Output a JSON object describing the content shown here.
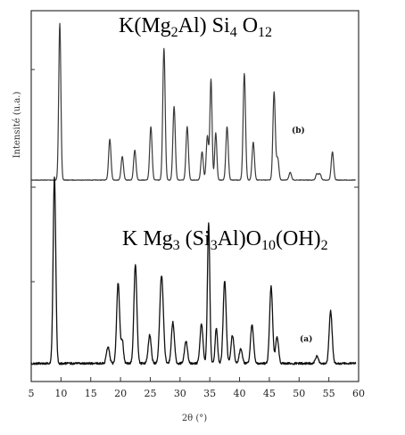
{
  "chart_data": {
    "type": "line",
    "title": "",
    "xlabel": "2θ (°)",
    "ylabel": "Intensité (u.a.)",
    "xlim": [
      5,
      60
    ],
    "xticks": [
      5,
      10,
      15,
      20,
      25,
      30,
      35,
      40,
      45,
      50,
      55,
      60
    ],
    "grid": false,
    "legend": "none",
    "series": [
      {
        "label": "(b)",
        "formula": [
          "K(Mg",
          "2",
          "Al) Si",
          "4",
          " O",
          "12"
        ],
        "color": "#3a3a3a",
        "baseline": 0,
        "ylim": [
          0,
          100
        ],
        "peaks": [
          [
            9.8,
            100,
            0.18
          ],
          [
            18.2,
            26,
            0.2
          ],
          [
            20.3,
            15,
            0.2
          ],
          [
            22.4,
            19,
            0.2
          ],
          [
            25.1,
            34,
            0.2
          ],
          [
            27.3,
            84,
            0.2
          ],
          [
            29.0,
            47,
            0.2
          ],
          [
            31.2,
            34,
            0.2
          ],
          [
            33.7,
            18,
            0.2
          ],
          [
            34.6,
            28,
            0.2
          ],
          [
            35.2,
            64,
            0.18
          ],
          [
            36.0,
            30,
            0.18
          ],
          [
            37.9,
            34,
            0.2
          ],
          [
            40.8,
            68,
            0.2
          ],
          [
            42.3,
            24,
            0.2
          ],
          [
            45.8,
            56,
            0.2
          ],
          [
            46.4,
            14,
            0.2
          ],
          [
            48.5,
            5,
            0.2
          ],
          [
            53.0,
            4,
            0.2
          ],
          [
            53.5,
            4,
            0.2
          ],
          [
            55.6,
            18,
            0.2
          ]
        ]
      },
      {
        "label": "(a)",
        "formula": [
          "K Mg",
          "3",
          " (Si",
          "3",
          "Al)O",
          "10",
          "(OH)",
          "2"
        ],
        "color": "#111111",
        "baseline": 3,
        "ylim": [
          0,
          100
        ],
        "peaks": [
          [
            8.9,
            100,
            0.22
          ],
          [
            17.9,
            9,
            0.25
          ],
          [
            19.6,
            43,
            0.25
          ],
          [
            20.3,
            12,
            0.2
          ],
          [
            22.5,
            53,
            0.25
          ],
          [
            24.9,
            15,
            0.25
          ],
          [
            26.9,
            47,
            0.3
          ],
          [
            28.8,
            22,
            0.25
          ],
          [
            31.0,
            12,
            0.25
          ],
          [
            33.6,
            21,
            0.25
          ],
          [
            34.8,
            75,
            0.2
          ],
          [
            36.1,
            19,
            0.2
          ],
          [
            37.5,
            44,
            0.25
          ],
          [
            38.8,
            15,
            0.25
          ],
          [
            40.2,
            8,
            0.25
          ],
          [
            42.1,
            21,
            0.25
          ],
          [
            45.3,
            41,
            0.25
          ],
          [
            46.3,
            14,
            0.25
          ],
          [
            53.0,
            4,
            0.25
          ],
          [
            55.3,
            28,
            0.25
          ]
        ]
      }
    ]
  }
}
